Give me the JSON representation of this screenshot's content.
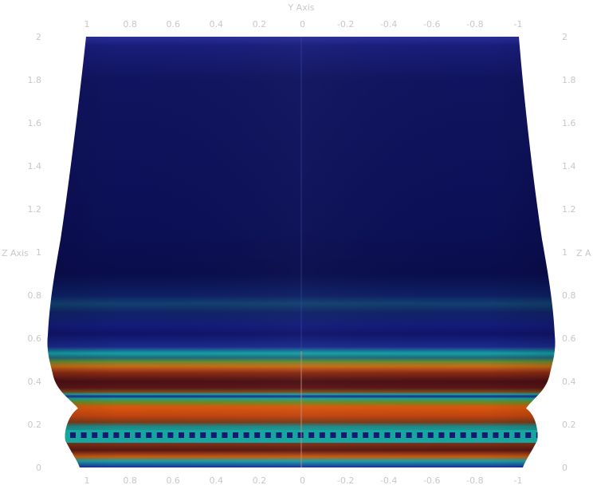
{
  "axes": {
    "y_axis_title": "Y Axis",
    "z_axis_title": "Z Axis",
    "z_axis_title_right": "Z A",
    "x_ticks": [
      "1",
      "0.8",
      "0.6",
      "0.4",
      "0.2",
      "0",
      "-0.2",
      "-0.4",
      "-0.6",
      "-0.8",
      "-1"
    ],
    "z_ticks": [
      "2",
      "1.8",
      "1.6",
      "1.4",
      "1.2",
      "1",
      "0.8",
      "0.6",
      "0.4",
      "0.2",
      "0"
    ]
  },
  "colors": {
    "background": "#ffffff",
    "axis_text": "#c8c8c8",
    "surface_cold": "#0c1160",
    "surface_mid": "#1a8a8f",
    "surface_hot": "#c94a10",
    "surface_dark_hot": "#4a0f12"
  }
}
